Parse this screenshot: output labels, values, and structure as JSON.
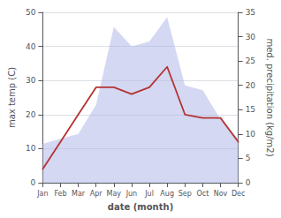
{
  "chart_data": {
    "type": "line",
    "categories": [
      "Jan",
      "Feb",
      "Mar",
      "Apr",
      "May",
      "Jun",
      "Jul",
      "Aug",
      "Sep",
      "Oct",
      "Nov",
      "Dec"
    ],
    "xlabel": "date (month)",
    "ylabel": "max temp (C)",
    "y2label": "med. precipitation (kg/m2)",
    "series": [
      {
        "type": "area",
        "axis": "y2",
        "color": "#b0b8e8",
        "values": [
          8,
          9,
          10,
          16,
          32,
          28,
          29,
          34,
          20,
          19,
          13,
          9
        ]
      },
      {
        "type": "line",
        "color": "#b33333",
        "values": [
          4,
          12,
          20,
          28,
          28,
          26,
          28,
          34,
          20,
          19,
          19,
          12
        ]
      }
    ],
    "ylim": [
      0,
      50
    ],
    "yticks": [
      0,
      10,
      20,
      30,
      40,
      50
    ],
    "y2lim": [
      0,
      35
    ],
    "y2ticks": [
      0,
      5,
      10,
      15,
      20,
      25,
      30,
      35
    ],
    "grid": true
  }
}
